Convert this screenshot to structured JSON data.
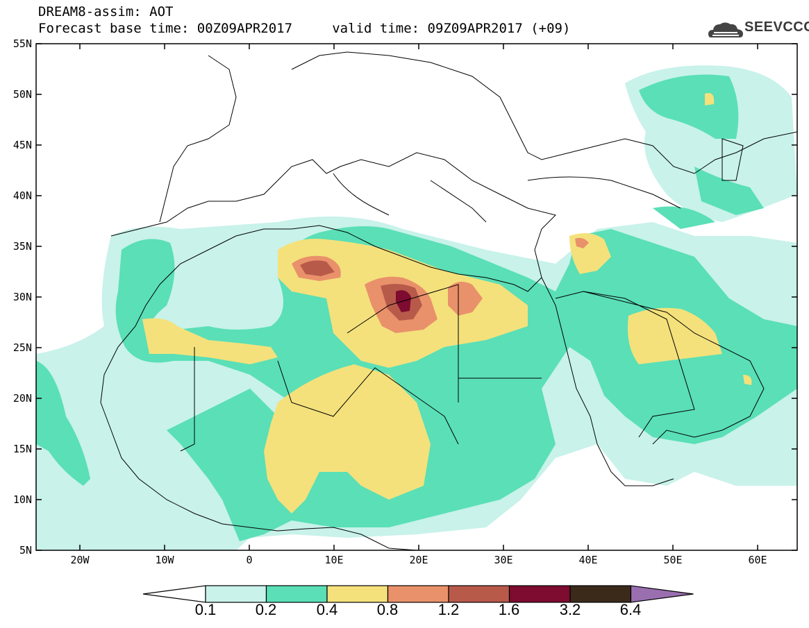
{
  "header": {
    "line1": "DREAM8-assim: AOT",
    "line2": "Forecast base time: 00Z09APR2017     valid time: 09Z09APR2017 (+09)"
  },
  "logo": {
    "text": "SEEVCCC",
    "icon": "cloud-icon"
  },
  "axes": {
    "y_ticks": [
      "55N",
      "50N",
      "45N",
      "40N",
      "35N",
      "30N",
      "25N",
      "20N",
      "15N",
      "10N",
      "5N"
    ],
    "x_ticks": [
      "20W",
      "10W",
      "0",
      "10E",
      "20E",
      "30E",
      "40E",
      "50E",
      "60E"
    ]
  },
  "colorbar": {
    "labels": [
      "0.1",
      "0.2",
      "0.4",
      "0.8",
      "1.2",
      "1.6",
      "3.2",
      "6.4"
    ],
    "colors": [
      "#ffffff",
      "#c8f2ea",
      "#5adfb6",
      "#f4e17c",
      "#e9916a",
      "#b85a4a",
      "#7d0c30",
      "#3b2a1a",
      "#9a6fb0"
    ]
  }
}
